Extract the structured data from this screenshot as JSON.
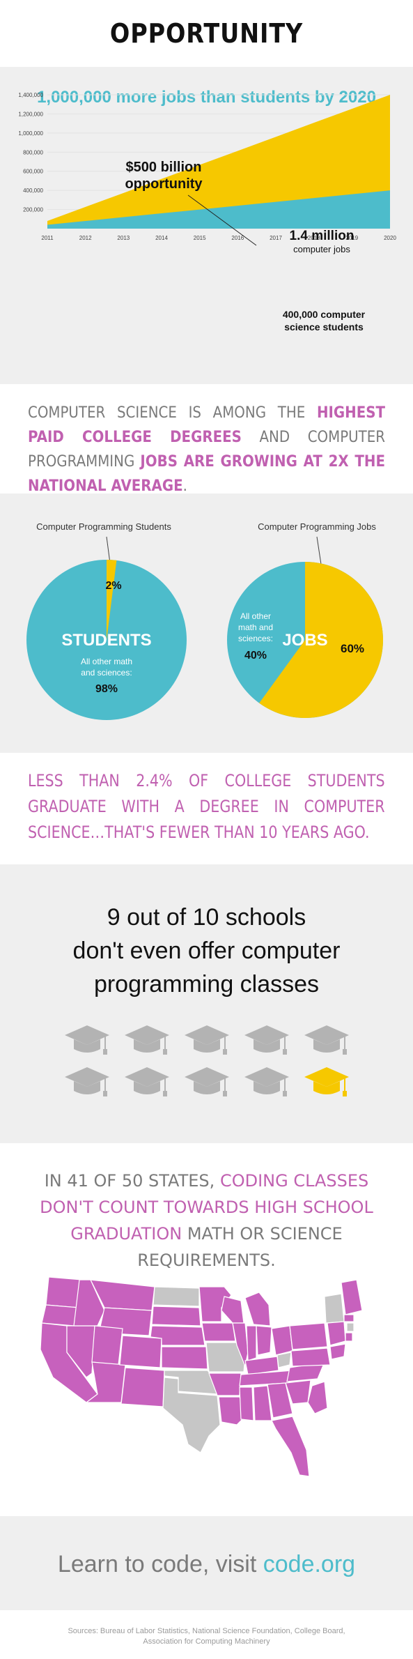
{
  "header": {
    "title": "OPPORTUNITY"
  },
  "jobs_chart": {
    "title": "1,000,000 more jobs than students by 2020",
    "annotation_big_1": "$500 billion",
    "annotation_big_2": "opportunity",
    "jobs_label_bold": "1.4 million",
    "jobs_label_small": "computer jobs",
    "students_label_1": "400,000 computer",
    "students_label_2": "science students",
    "colors": {
      "jobs": "#f6c800",
      "students": "#4dbccb",
      "title": "#4dbccb"
    }
  },
  "chart_data": {
    "type": "area",
    "title": "1,000,000 more jobs than students by 2020",
    "x": [
      "2011",
      "2012",
      "2013",
      "2014",
      "2015",
      "2016",
      "2017",
      "2018",
      "2019",
      "2020"
    ],
    "y_ticks": [
      "200,000",
      "400,000",
      "600,000",
      "800,000",
      "1,000,000",
      "1,200,000",
      "1,400,000"
    ],
    "ylim": [
      0,
      1400000
    ],
    "series": [
      {
        "name": "computer jobs",
        "values": [
          80000,
          227000,
          373000,
          520000,
          667000,
          813000,
          960000,
          1107000,
          1253000,
          1400000
        ]
      },
      {
        "name": "computer science students",
        "values": [
          40000,
          80000,
          120000,
          160000,
          200000,
          240000,
          280000,
          320000,
          360000,
          400000
        ]
      }
    ]
  },
  "highest_paid": {
    "part1": "COMPUTER SCIENCE IS AMONG THE ",
    "part2": "HIGHEST PAID COLLEGE DEGREES",
    "part3": " AND COMPUTER PROGRAMMING ",
    "part4": "JOBS ARE GROWING AT 2X THE NATIONAL AVERAGE",
    "part5": "."
  },
  "pies": {
    "students": {
      "caption": "Computer Programming Students",
      "center_label": "STUDENTS",
      "small_pct": "2%",
      "other_label_1": "All other math",
      "other_label_2": "and sciences:",
      "other_pct": "98%",
      "slice_fraction": 0.02
    },
    "jobs": {
      "caption": "Computer Programming Jobs",
      "center_label": "JOBS",
      "main_pct": "60%",
      "other_label_1": "All other",
      "other_label_2": "math and",
      "other_label_3": "sciences:",
      "other_pct": "40%",
      "slice_fraction": 0.6
    }
  },
  "graduates": {
    "text": "LESS THAN 2.4% OF COLLEGE STUDENTS GRADUATE WITH A DEGREE IN COMPUTER SCIENCE…THAT'S FEWER THAN 10 YEARS AGO."
  },
  "schools": {
    "line1": "9 out of 10 schools",
    "line2": "don't even offer computer",
    "line3": "programming classes",
    "total": 10,
    "highlighted": 1
  },
  "states": {
    "part1": "IN 41 OF 50 STATES, ",
    "part2": "CODING CLASSES DON'T COUNT TOWARDS HIGH SCHOOL GRADUATION",
    "part3": " MATH OR SCIENCE REQUIREMENTS.",
    "count": 41,
    "of": 50
  },
  "cta": {
    "text": "Learn to code, visit ",
    "link": "code.org"
  },
  "sources": {
    "line1": "Sources:  Bureau of Labor Statistics, National Science Foundation, College Board,",
    "line2": "Association for Computing Machinery"
  }
}
